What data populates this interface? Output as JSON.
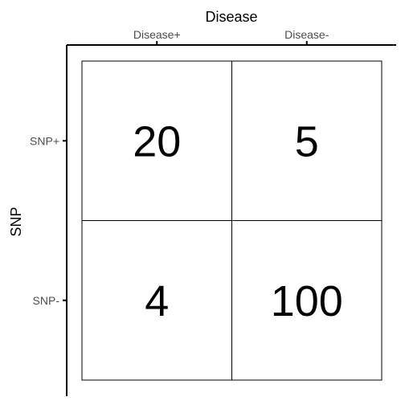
{
  "chart_data": {
    "type": "table",
    "title": "",
    "xlabel": "Disease",
    "ylabel": "SNP",
    "x_categories": [
      "Disease+",
      "Disease-"
    ],
    "y_categories": [
      "SNP+",
      "SNP-"
    ],
    "cells": [
      [
        20,
        5
      ],
      [
        4,
        100
      ]
    ],
    "grid": true,
    "legend": "none",
    "colors": {
      "background": "#ffffff",
      "cell_fill": "#ffffff",
      "line": "#000000",
      "tick_label": "#4d4d4d",
      "value_text": "#000000"
    }
  }
}
